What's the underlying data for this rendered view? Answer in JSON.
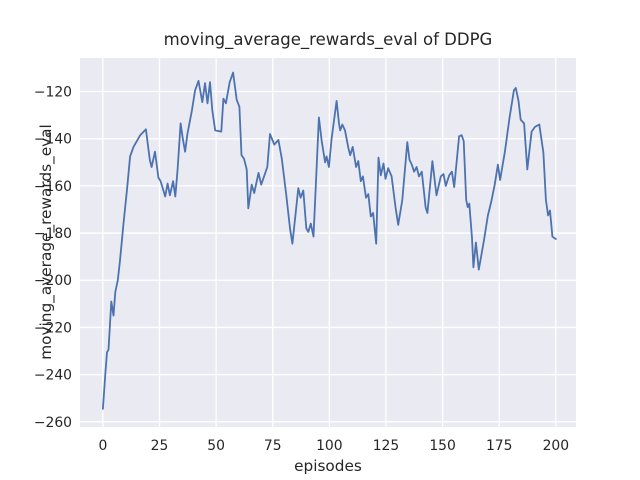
{
  "figure": {
    "title": "moving_average_rewards_eval of DDPG"
  },
  "chart_data": {
    "type": "line",
    "title": "moving_average_rewards_eval of DDPG",
    "xlabel": "episodes",
    "ylabel": "moving_average_rewards_eval",
    "legend_position": "none",
    "grid": true,
    "style": {
      "figure_background": "#ffffff",
      "axes_background": "#eaeaf2",
      "grid_color": "#ffffff",
      "line_color": "#4c72b0",
      "text_color": "#262626"
    },
    "xlim": [
      -10.1,
      208.9
    ],
    "ylim": [
      -262.2,
      -105.8
    ],
    "x_ticks": [
      0,
      25,
      50,
      75,
      100,
      125,
      150,
      175,
      200
    ],
    "x_tick_labels": [
      "0",
      "25",
      "50",
      "75",
      "100",
      "125",
      "150",
      "175",
      "200"
    ],
    "y_ticks": [
      -120,
      -140,
      -160,
      -180,
      -200,
      -220,
      -240,
      -260
    ],
    "y_tick_labels": [
      "−120",
      "−140",
      "−160",
      "−180",
      "−200",
      "−220",
      "−240",
      "−260"
    ],
    "series": [
      {
        "name": "moving_average_rewards_eval",
        "x": [
          0,
          1,
          1.8,
          2.5,
          3.7,
          4.7,
          5.5,
          6.6,
          7.5,
          9.1,
          10.6,
          12,
          13.5,
          16.5,
          19,
          20.7,
          21.5,
          23,
          24.5,
          25.5,
          26.6,
          27.5,
          28.6,
          29.6,
          31,
          32,
          33,
          34.3,
          35.3,
          36.3,
          37.3,
          39.3,
          40.7,
          42.2,
          43.9,
          45.1,
          46.2,
          47.3,
          48.3,
          49.6,
          52.3,
          53.2,
          54.3,
          56,
          57.5,
          59.1,
          60.3,
          61.2,
          62.3,
          63.5,
          64.2,
          65.7,
          66.8,
          68.7,
          69.9,
          72.6,
          73.8,
          75.7,
          77.5,
          79,
          81,
          82.6,
          83.7,
          86.3,
          87.3,
          88.5,
          89.8,
          90.7,
          91.8,
          93,
          95.4,
          96.6,
          98.1,
          98.8,
          99.8,
          101,
          103.2,
          104.3,
          104.8,
          105.7,
          106.9,
          108.4,
          109.2,
          110.3,
          111.8,
          112.8,
          113.9,
          114.8,
          116.2,
          117.2,
          118.3,
          119.3,
          120.7,
          121.7,
          122.7,
          123.9,
          124.8,
          126,
          127.5,
          129.2,
          130.4,
          132.2,
          134.4,
          135.4,
          136.4,
          137.4,
          138.5,
          139.6,
          140.8,
          142.5,
          143.3,
          145.5,
          147.3,
          149.2,
          150.4,
          151.4,
          152.9,
          154.1,
          155.1,
          157.3,
          158.4,
          159.3,
          160.4,
          161.1,
          161.8,
          163,
          163.6,
          164.7,
          166,
          168.3,
          170,
          171.4,
          173,
          174.4,
          175.4,
          177.5,
          179.5,
          181.5,
          182.3,
          183.5,
          184.5,
          186,
          187.4,
          189.3,
          190.8,
          192.7,
          194.5,
          195.6,
          196.6,
          197.4,
          198.5,
          200
        ],
        "y": [
          -254.5,
          -241,
          -230.5,
          -229.5,
          -209,
          -215,
          -205,
          -200,
          -192,
          -176,
          -162,
          -147.5,
          -143.5,
          -138.5,
          -136,
          -149,
          -152,
          -145.5,
          -156.5,
          -158,
          -161.5,
          -164.5,
          -159,
          -164,
          -158,
          -164.5,
          -153,
          -133.5,
          -140,
          -145.5,
          -138,
          -128,
          -119.5,
          -115.5,
          -124.5,
          -116.5,
          -125,
          -116,
          -128,
          -136.5,
          -137,
          -123,
          -125,
          -116,
          -112,
          -123.5,
          -126.5,
          -147,
          -148.5,
          -153,
          -169.5,
          -159.5,
          -163,
          -154.5,
          -159.5,
          -152,
          -138,
          -142.5,
          -140.5,
          -148.5,
          -164,
          -178,
          -184.5,
          -161,
          -165,
          -162,
          -178,
          -179.5,
          -176,
          -181.5,
          -131,
          -141,
          -150,
          -147.5,
          -152,
          -140,
          -124,
          -134,
          -136.5,
          -134,
          -136.5,
          -144,
          -147,
          -143.5,
          -152,
          -149.5,
          -158,
          -156,
          -165,
          -163.5,
          -173,
          -171.5,
          -184.5,
          -148,
          -155.5,
          -150.5,
          -157,
          -152.5,
          -156,
          -169,
          -176.5,
          -166,
          -141.5,
          -149,
          -151,
          -154,
          -152,
          -156,
          -154,
          -169,
          -171.5,
          -149.5,
          -164,
          -156,
          -155,
          -160,
          -155.5,
          -154,
          -160.5,
          -139,
          -138.5,
          -141,
          -166,
          -169,
          -167.5,
          -182,
          -194.5,
          -184,
          -195.5,
          -183,
          -172.5,
          -167,
          -159.5,
          -151,
          -157.5,
          -145.5,
          -131.5,
          -119.5,
          -118.5,
          -124,
          -132,
          -133.5,
          -153,
          -137,
          -135,
          -134,
          -146,
          -166,
          -172.5,
          -170.5,
          -181.5,
          -182.5
        ]
      }
    ]
  }
}
